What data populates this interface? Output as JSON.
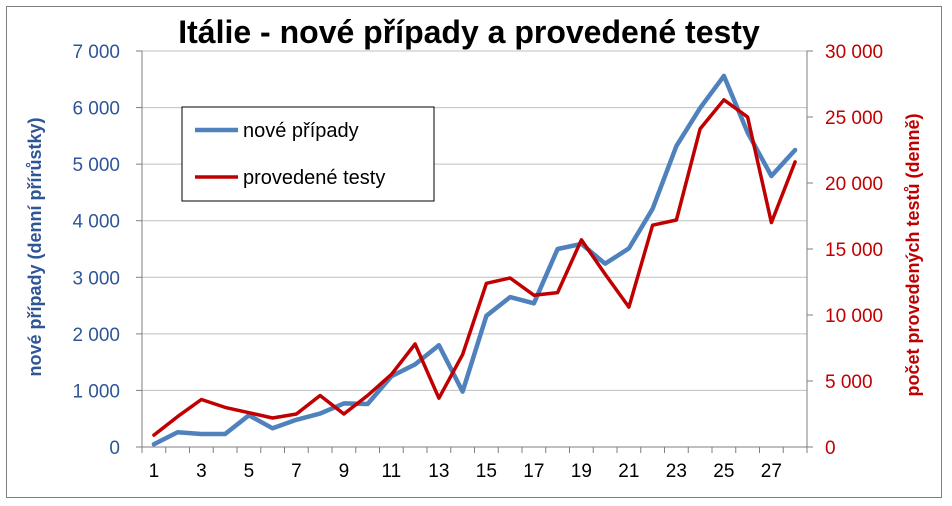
{
  "chart_data": {
    "type": "line",
    "title": "Itálie - nové případy a provedené testy",
    "xlabel": "",
    "ylabel_left": "nové případy (denní přírůstky)",
    "ylabel_right": "počet provedených testů (denně)",
    "ylim_left": [
      0,
      7000
    ],
    "ylim_right": [
      0,
      30000
    ],
    "yticks_left": [
      "0",
      "1 000",
      "2 000",
      "3 000",
      "4 000",
      "5 000",
      "6 000",
      "7 000"
    ],
    "yticks_right": [
      "0",
      "5 000",
      "10 000",
      "15 000",
      "20 000",
      "25 000",
      "30 000"
    ],
    "x": [
      1,
      2,
      3,
      4,
      5,
      6,
      7,
      8,
      9,
      10,
      11,
      12,
      13,
      14,
      15,
      16,
      17,
      18,
      19,
      20,
      21,
      22,
      23,
      24,
      25,
      26,
      27,
      28
    ],
    "xticks": [
      "1",
      "3",
      "5",
      "7",
      "9",
      "11",
      "13",
      "15",
      "17",
      "19",
      "21",
      "23",
      "25",
      "27"
    ],
    "legend_position": "top-left",
    "grid": true,
    "series": [
      {
        "name": "nové případy",
        "axis": "left",
        "color": "#4f81bd",
        "values": [
          50,
          260,
          230,
          230,
          560,
          330,
          480,
          590,
          770,
          760,
          1250,
          1460,
          1800,
          980,
          2320,
          2650,
          2540,
          3500,
          3590,
          3240,
          3510,
          4210,
          5320,
          5990,
          6560,
          5560,
          4790,
          5250
        ]
      },
      {
        "name": "provedené testy",
        "axis": "right",
        "color": "#c00000",
        "values": [
          900,
          2300,
          3600,
          3000,
          2600,
          2200,
          2500,
          3900,
          2500,
          3900,
          5500,
          7800,
          3700,
          7000,
          12400,
          12800,
          11500,
          11700,
          15700,
          13100,
          10600,
          16800,
          17200,
          24100,
          26300,
          25000,
          17000,
          21600
        ]
      }
    ]
  }
}
